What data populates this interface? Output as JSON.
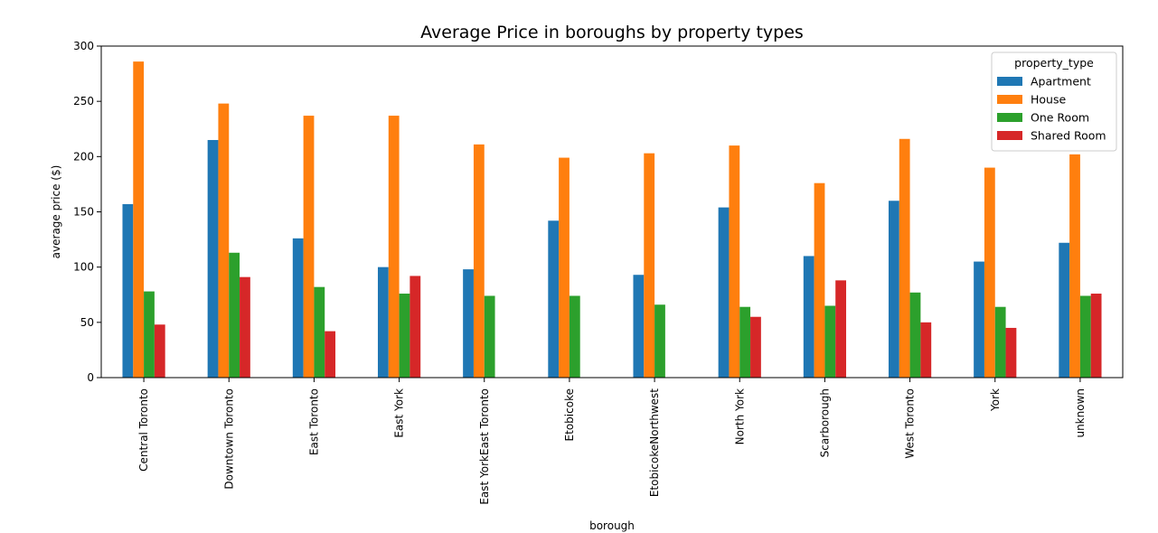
{
  "chart_data": {
    "type": "bar",
    "title": "Average Price in boroughs by property types",
    "xlabel": "borough",
    "ylabel": "average price ($)",
    "ylim": [
      0,
      300
    ],
    "yticks": [
      0,
      50,
      100,
      150,
      200,
      250,
      300
    ],
    "grid": false,
    "legend_title": "property_type",
    "legend_position": "top-right",
    "categories": [
      "Central Toronto",
      "Downtown Toronto",
      "East Toronto",
      "East York",
      "East YorkEast Toronto",
      "Etobicoke",
      "EtobicokeNorthwest",
      "North York",
      "Scarborough",
      "West Toronto",
      "York",
      "unknown"
    ],
    "series": [
      {
        "name": "Apartment",
        "color": "#1f77b4",
        "values": [
          157,
          215,
          126,
          100,
          98,
          142,
          93,
          154,
          110,
          160,
          105,
          122
        ]
      },
      {
        "name": "House",
        "color": "#ff7f0e",
        "values": [
          286,
          248,
          237,
          237,
          211,
          199,
          203,
          210,
          176,
          216,
          190,
          202
        ]
      },
      {
        "name": "One Room",
        "color": "#2ca02c",
        "values": [
          78,
          113,
          82,
          76,
          74,
          74,
          66,
          64,
          65,
          77,
          64,
          74
        ]
      },
      {
        "name": "Shared Room",
        "color": "#d62728",
        "values": [
          48,
          91,
          42,
          92,
          null,
          null,
          null,
          55,
          88,
          50,
          45,
          76
        ]
      }
    ]
  }
}
